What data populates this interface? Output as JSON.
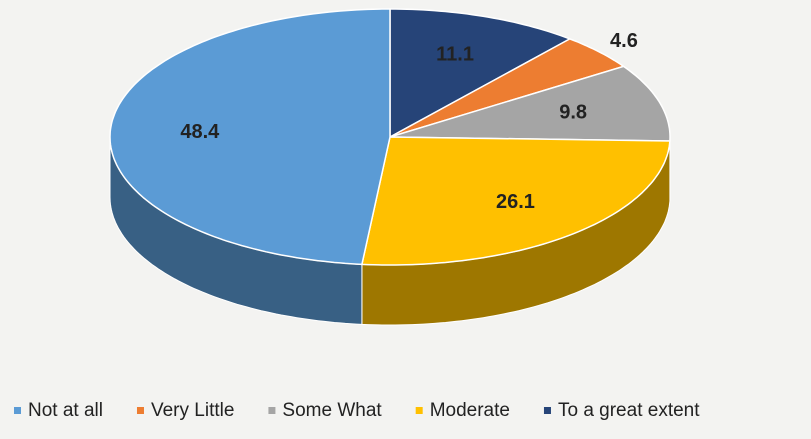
{
  "chart_data": {
    "type": "pie",
    "categories": [
      "Not at all",
      "Very Little",
      "Some What",
      "Moderate",
      "To a great extent"
    ],
    "values": [
      48.4,
      4.6,
      9.8,
      26.1,
      11.1
    ],
    "colors": [
      "#5b9bd5",
      "#ed7d31",
      "#a5a5a5",
      "#ffc000",
      "#264478"
    ],
    "legend": "bottom"
  }
}
